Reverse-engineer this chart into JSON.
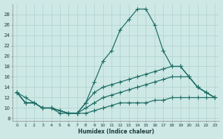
{
  "xlabel": "Humidex (Indice chaleur)",
  "bg_color": "#cde8e5",
  "line_color": "#1a6b62",
  "grid_color": "#aed0cc",
  "xlim": [
    -0.5,
    23.5
  ],
  "ylim": [
    7.5,
    30
  ],
  "xticks": [
    0,
    1,
    2,
    3,
    4,
    5,
    6,
    7,
    8,
    9,
    10,
    11,
    12,
    13,
    14,
    15,
    16,
    17,
    18,
    19,
    20,
    21,
    22,
    23
  ],
  "yticks": [
    8,
    10,
    12,
    14,
    16,
    18,
    20,
    22,
    24,
    26,
    28
  ],
  "line1_x": [
    0,
    1,
    2,
    3,
    4,
    5,
    6,
    7,
    8,
    9,
    10,
    11,
    12,
    13,
    14,
    15,
    16,
    17,
    18,
    19,
    20,
    21,
    22,
    23
  ],
  "line1_y": [
    13,
    12,
    11,
    10,
    10,
    9,
    9,
    9,
    11,
    15,
    19,
    21,
    25,
    27,
    29,
    29,
    26,
    21,
    18,
    18,
    16,
    14,
    13,
    12
  ],
  "line2_x": [
    0,
    1,
    2,
    3,
    4,
    5,
    6,
    7,
    8,
    9,
    10,
    11,
    12,
    13,
    14,
    15,
    16,
    17,
    18,
    19,
    20,
    21,
    22,
    23
  ],
  "line2_y": [
    13,
    11,
    11,
    10,
    10,
    9.5,
    9,
    9,
    11,
    13,
    14,
    14.5,
    15,
    15.5,
    16,
    16.5,
    17,
    17.5,
    18,
    18,
    16,
    14,
    13,
    12
  ],
  "line3_x": [
    0,
    1,
    2,
    3,
    4,
    5,
    6,
    7,
    8,
    9,
    10,
    11,
    12,
    13,
    14,
    15,
    16,
    17,
    18,
    19,
    20,
    21,
    22,
    23
  ],
  "line3_y": [
    13,
    11,
    11,
    10,
    10,
    9.5,
    9,
    9,
    10,
    11,
    12,
    12.5,
    13,
    13.5,
    14,
    14.5,
    15,
    15.5,
    16,
    16,
    16,
    14,
    13,
    12
  ],
  "line4_x": [
    0,
    1,
    2,
    3,
    4,
    5,
    6,
    7,
    8,
    9,
    10,
    11,
    12,
    13,
    14,
    15,
    16,
    17,
    18,
    19,
    20,
    21,
    22,
    23
  ],
  "line4_y": [
    13,
    11,
    11,
    10,
    10,
    9.5,
    9,
    9,
    9,
    9.5,
    10,
    10.5,
    11,
    11,
    11,
    11,
    11.5,
    11.5,
    12,
    12,
    12,
    12,
    12,
    12
  ]
}
